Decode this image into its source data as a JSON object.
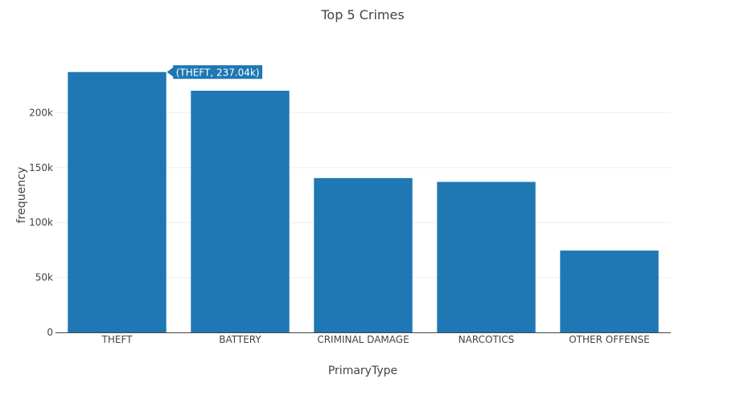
{
  "chart_data": {
    "type": "bar",
    "title": "Top 5 Crimes",
    "xlabel": "PrimaryType",
    "ylabel": "frequency",
    "categories": [
      "THEFT",
      "BATTERY",
      "CRIMINAL DAMAGE",
      "NARCOTICS",
      "OTHER OFFENSE"
    ],
    "values": [
      237040,
      220000,
      140500,
      137000,
      74500
    ],
    "ylim": [
      0,
      250000
    ],
    "yticks": [
      0,
      50000,
      100000,
      150000,
      200000
    ],
    "ytick_labels": [
      "0",
      "50k",
      "100k",
      "150k",
      "200k"
    ],
    "grid": true,
    "bar_color": "#1f77b4",
    "hover_label": {
      "category_index": 0,
      "text": "(THEFT, 237.04k)"
    }
  }
}
